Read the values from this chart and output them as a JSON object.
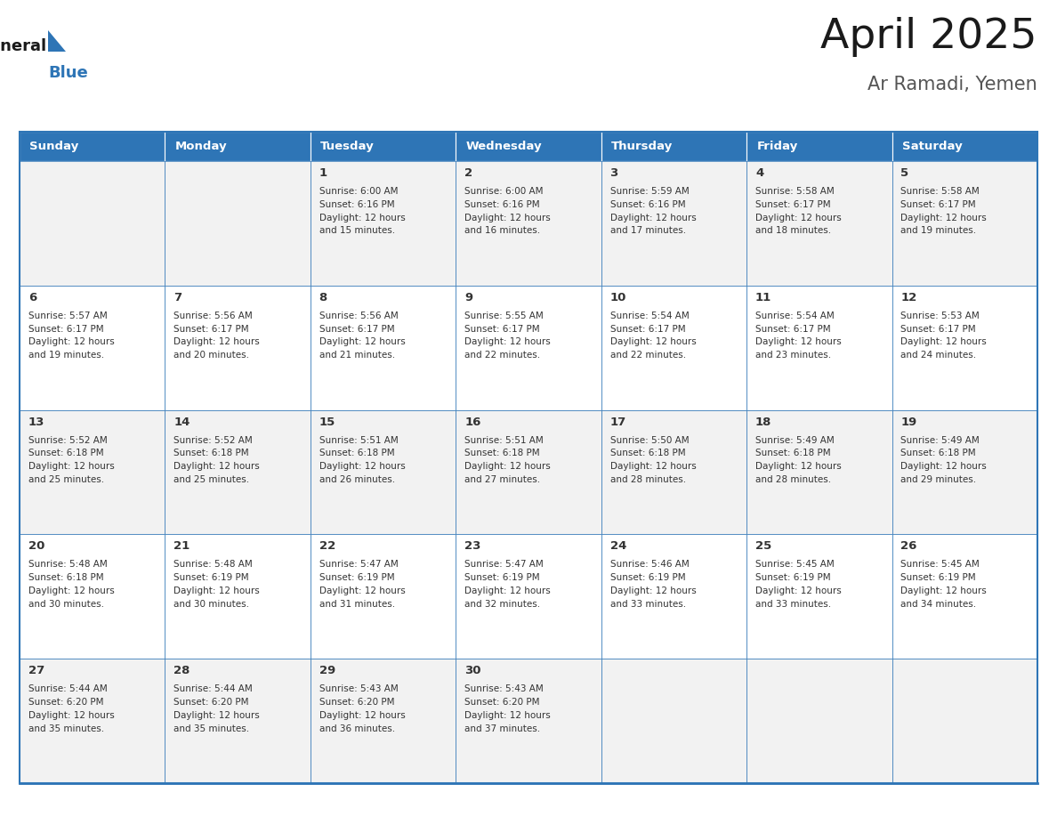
{
  "title": "April 2025",
  "subtitle": "Ar Ramadi, Yemen",
  "header_bg_color": "#2E75B6",
  "header_text_color": "#FFFFFF",
  "cell_bg_white": "#FFFFFF",
  "cell_bg_gray": "#F2F2F2",
  "cell_text_color": "#333333",
  "day_number_color": "#333333",
  "border_color": "#2E75B6",
  "days_of_week": [
    "Sunday",
    "Monday",
    "Tuesday",
    "Wednesday",
    "Thursday",
    "Friday",
    "Saturday"
  ],
  "logo_general_color": "#1a1a1a",
  "logo_blue_color": "#2E75B6",
  "weeks": [
    [
      {
        "date": "",
        "sunrise": "",
        "sunset": "",
        "daylight_hours": 0,
        "daylight_minutes": 0
      },
      {
        "date": "",
        "sunrise": "",
        "sunset": "",
        "daylight_hours": 0,
        "daylight_minutes": 0
      },
      {
        "date": "1",
        "sunrise": "6:00 AM",
        "sunset": "6:16 PM",
        "daylight_hours": 12,
        "daylight_minutes": 15
      },
      {
        "date": "2",
        "sunrise": "6:00 AM",
        "sunset": "6:16 PM",
        "daylight_hours": 12,
        "daylight_minutes": 16
      },
      {
        "date": "3",
        "sunrise": "5:59 AM",
        "sunset": "6:16 PM",
        "daylight_hours": 12,
        "daylight_minutes": 17
      },
      {
        "date": "4",
        "sunrise": "5:58 AM",
        "sunset": "6:17 PM",
        "daylight_hours": 12,
        "daylight_minutes": 18
      },
      {
        "date": "5",
        "sunrise": "5:58 AM",
        "sunset": "6:17 PM",
        "daylight_hours": 12,
        "daylight_minutes": 19
      }
    ],
    [
      {
        "date": "6",
        "sunrise": "5:57 AM",
        "sunset": "6:17 PM",
        "daylight_hours": 12,
        "daylight_minutes": 19
      },
      {
        "date": "7",
        "sunrise": "5:56 AM",
        "sunset": "6:17 PM",
        "daylight_hours": 12,
        "daylight_minutes": 20
      },
      {
        "date": "8",
        "sunrise": "5:56 AM",
        "sunset": "6:17 PM",
        "daylight_hours": 12,
        "daylight_minutes": 21
      },
      {
        "date": "9",
        "sunrise": "5:55 AM",
        "sunset": "6:17 PM",
        "daylight_hours": 12,
        "daylight_minutes": 22
      },
      {
        "date": "10",
        "sunrise": "5:54 AM",
        "sunset": "6:17 PM",
        "daylight_hours": 12,
        "daylight_minutes": 22
      },
      {
        "date": "11",
        "sunrise": "5:54 AM",
        "sunset": "6:17 PM",
        "daylight_hours": 12,
        "daylight_minutes": 23
      },
      {
        "date": "12",
        "sunrise": "5:53 AM",
        "sunset": "6:17 PM",
        "daylight_hours": 12,
        "daylight_minutes": 24
      }
    ],
    [
      {
        "date": "13",
        "sunrise": "5:52 AM",
        "sunset": "6:18 PM",
        "daylight_hours": 12,
        "daylight_minutes": 25
      },
      {
        "date": "14",
        "sunrise": "5:52 AM",
        "sunset": "6:18 PM",
        "daylight_hours": 12,
        "daylight_minutes": 25
      },
      {
        "date": "15",
        "sunrise": "5:51 AM",
        "sunset": "6:18 PM",
        "daylight_hours": 12,
        "daylight_minutes": 26
      },
      {
        "date": "16",
        "sunrise": "5:51 AM",
        "sunset": "6:18 PM",
        "daylight_hours": 12,
        "daylight_minutes": 27
      },
      {
        "date": "17",
        "sunrise": "5:50 AM",
        "sunset": "6:18 PM",
        "daylight_hours": 12,
        "daylight_minutes": 28
      },
      {
        "date": "18",
        "sunrise": "5:49 AM",
        "sunset": "6:18 PM",
        "daylight_hours": 12,
        "daylight_minutes": 28
      },
      {
        "date": "19",
        "sunrise": "5:49 AM",
        "sunset": "6:18 PM",
        "daylight_hours": 12,
        "daylight_minutes": 29
      }
    ],
    [
      {
        "date": "20",
        "sunrise": "5:48 AM",
        "sunset": "6:18 PM",
        "daylight_hours": 12,
        "daylight_minutes": 30
      },
      {
        "date": "21",
        "sunrise": "5:48 AM",
        "sunset": "6:19 PM",
        "daylight_hours": 12,
        "daylight_minutes": 30
      },
      {
        "date": "22",
        "sunrise": "5:47 AM",
        "sunset": "6:19 PM",
        "daylight_hours": 12,
        "daylight_minutes": 31
      },
      {
        "date": "23",
        "sunrise": "5:47 AM",
        "sunset": "6:19 PM",
        "daylight_hours": 12,
        "daylight_minutes": 32
      },
      {
        "date": "24",
        "sunrise": "5:46 AM",
        "sunset": "6:19 PM",
        "daylight_hours": 12,
        "daylight_minutes": 33
      },
      {
        "date": "25",
        "sunrise": "5:45 AM",
        "sunset": "6:19 PM",
        "daylight_hours": 12,
        "daylight_minutes": 33
      },
      {
        "date": "26",
        "sunrise": "5:45 AM",
        "sunset": "6:19 PM",
        "daylight_hours": 12,
        "daylight_minutes": 34
      }
    ],
    [
      {
        "date": "27",
        "sunrise": "5:44 AM",
        "sunset": "6:20 PM",
        "daylight_hours": 12,
        "daylight_minutes": 35
      },
      {
        "date": "28",
        "sunrise": "5:44 AM",
        "sunset": "6:20 PM",
        "daylight_hours": 12,
        "daylight_minutes": 35
      },
      {
        "date": "29",
        "sunrise": "5:43 AM",
        "sunset": "6:20 PM",
        "daylight_hours": 12,
        "daylight_minutes": 36
      },
      {
        "date": "30",
        "sunrise": "5:43 AM",
        "sunset": "6:20 PM",
        "daylight_hours": 12,
        "daylight_minutes": 37
      },
      {
        "date": "",
        "sunrise": "",
        "sunset": "",
        "daylight_hours": 0,
        "daylight_minutes": 0
      },
      {
        "date": "",
        "sunrise": "",
        "sunset": "",
        "daylight_hours": 0,
        "daylight_minutes": 0
      },
      {
        "date": "",
        "sunrise": "",
        "sunset": "",
        "daylight_hours": 0,
        "daylight_minutes": 0
      }
    ]
  ]
}
